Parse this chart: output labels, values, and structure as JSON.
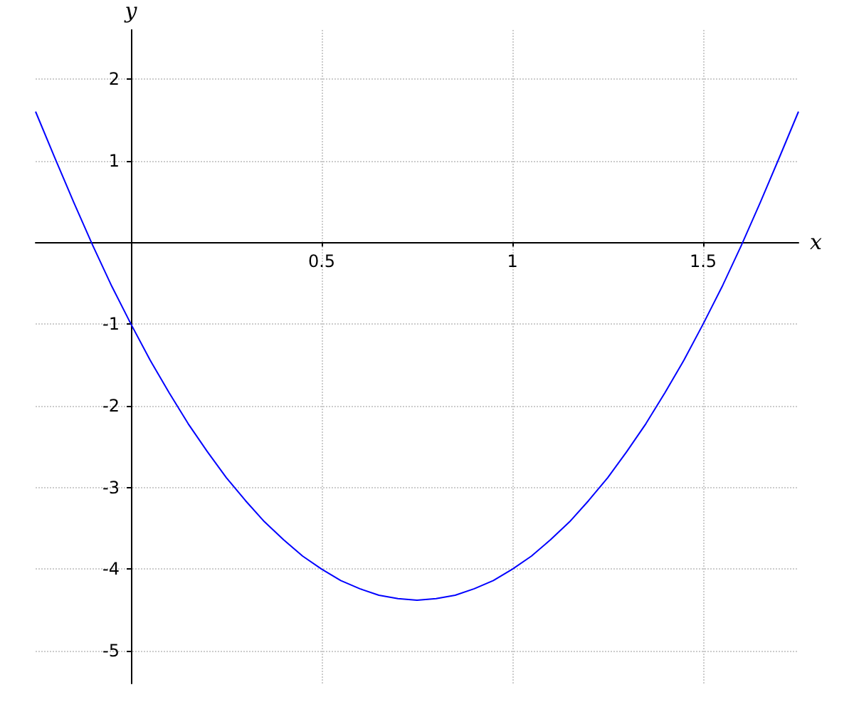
{
  "chart_data": {
    "type": "line",
    "xlabel": "x",
    "ylabel": "y",
    "x": [
      -0.25,
      -0.2,
      -0.15,
      -0.1,
      -0.05,
      0,
      0.05,
      0.1,
      0.15,
      0.2,
      0.25,
      0.3,
      0.35,
      0.4,
      0.45,
      0.5,
      0.55,
      0.6,
      0.65,
      0.7,
      0.75,
      0.8,
      0.85,
      0.9,
      0.95,
      1,
      1.05,
      1.1,
      1.15,
      1.2,
      1.25,
      1.3,
      1.35,
      1.4,
      1.45,
      1.5,
      1.55,
      1.6,
      1.65,
      1.7,
      1.75
    ],
    "series": [
      {
        "color": "#0000ff",
        "values": [
          1.6,
          1.04,
          0.49,
          -0.04,
          -0.54,
          -1,
          -1.44,
          -1.84,
          -2.22,
          -2.56,
          -2.88,
          -3.16,
          -3.42,
          -3.64,
          -3.84,
          -4,
          -4.14,
          -4.24,
          -4.32,
          -4.36,
          -4.38,
          -4.36,
          -4.32,
          -4.24,
          -4.14,
          -4,
          -3.84,
          -3.64,
          -3.42,
          -3.16,
          -2.88,
          -2.56,
          -2.22,
          -1.84,
          -1.44,
          -1,
          -0.54,
          -0.04,
          0.49,
          1.04,
          1.6
        ]
      }
    ],
    "xlim": [
      -0.25,
      1.75
    ],
    "ylim": [
      -5.4,
      2.6
    ],
    "xticks": [
      0.5,
      1,
      1.5
    ],
    "yticks": [
      -5,
      -4,
      -3,
      -2,
      -1,
      1,
      2
    ],
    "grid": true,
    "marker": "none",
    "line_style": "solid"
  }
}
